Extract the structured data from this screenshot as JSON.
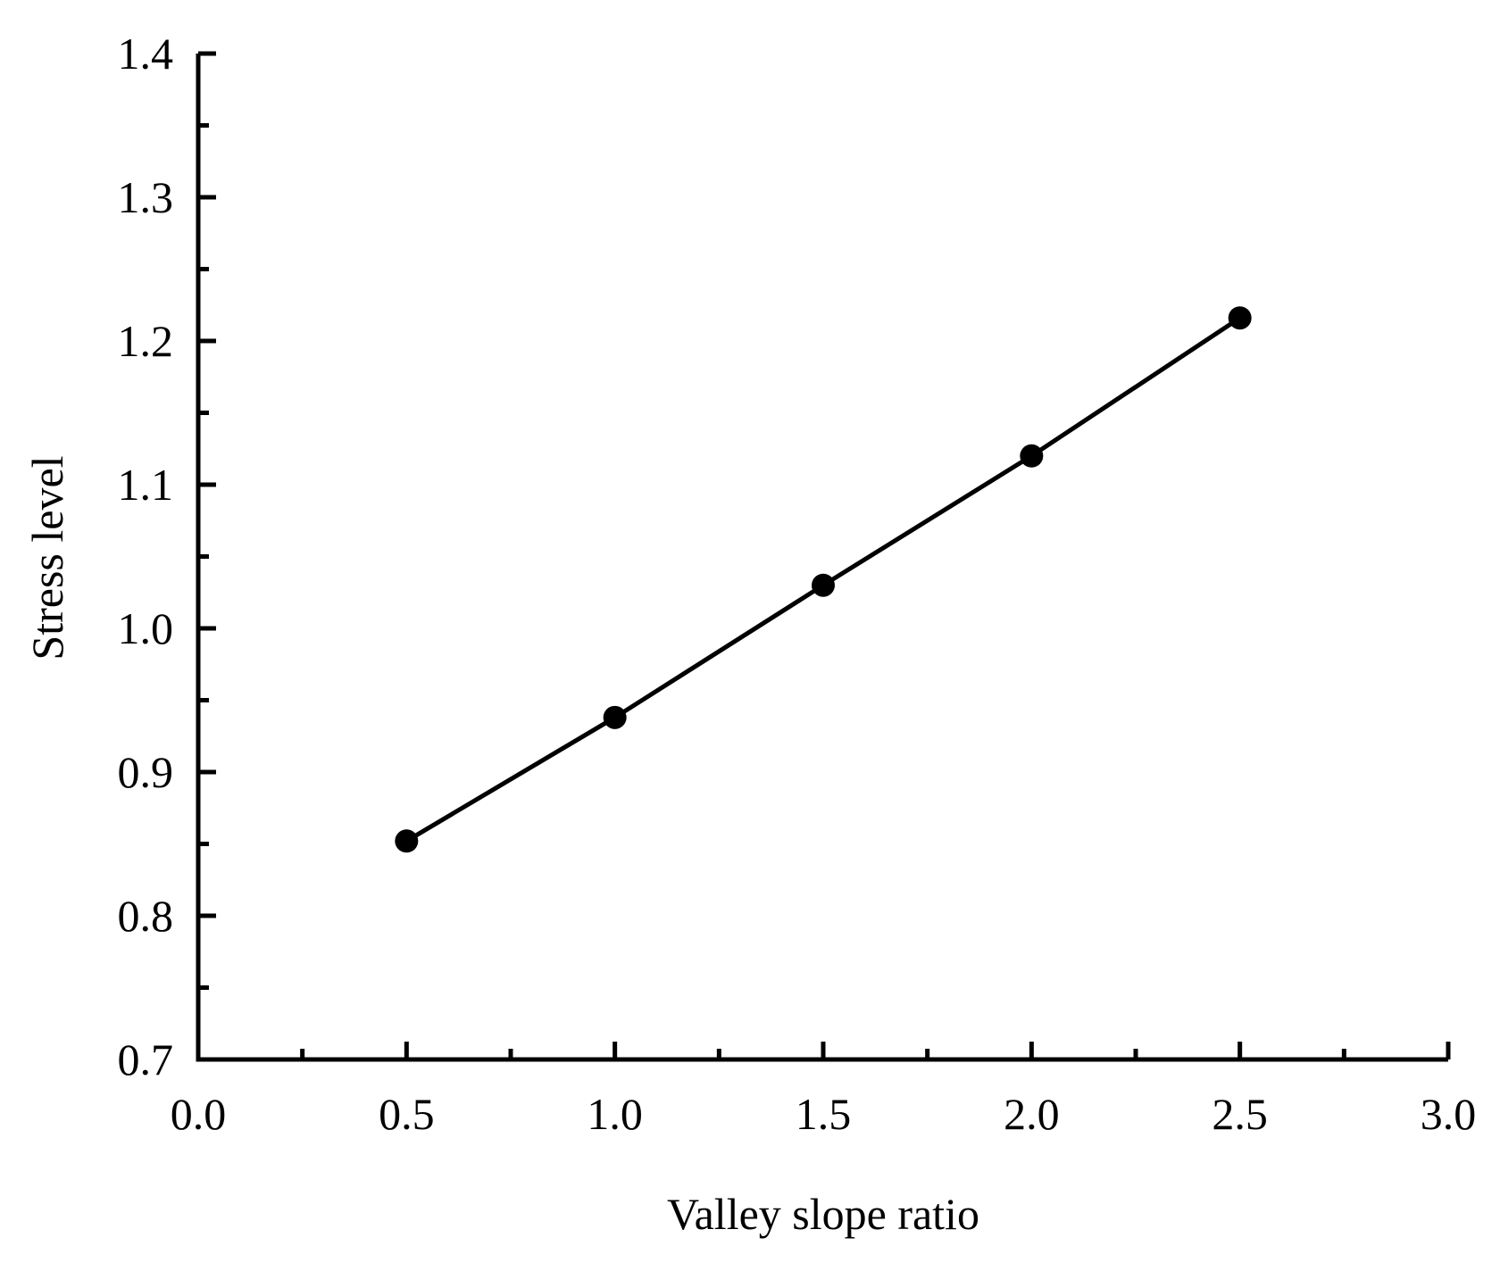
{
  "chart_data": {
    "type": "line",
    "xlabel": "Valley slope ratio",
    "ylabel": "Stress level",
    "xlim": [
      0.0,
      3.0
    ],
    "ylim": [
      0.7,
      1.4
    ],
    "x_ticks": [
      "0.0",
      "0.5",
      "1.0",
      "1.5",
      "2.0",
      "2.5",
      "3.0"
    ],
    "y_ticks": [
      "0.7",
      "0.8",
      "0.9",
      "1.0",
      "1.1",
      "1.2",
      "1.3",
      "1.4"
    ],
    "x_minor_step": 0.25,
    "y_minor_step": 0.05,
    "grid": false,
    "legend": "none",
    "marker": "filled-circle",
    "colors": {
      "line": "#000000",
      "marker": "#000000",
      "axis": "#000000"
    },
    "series": [
      {
        "x": [
          0.5,
          1.0,
          1.5,
          2.0,
          2.5
        ],
        "y": [
          0.852,
          0.938,
          1.03,
          1.12,
          1.216
        ]
      }
    ]
  }
}
